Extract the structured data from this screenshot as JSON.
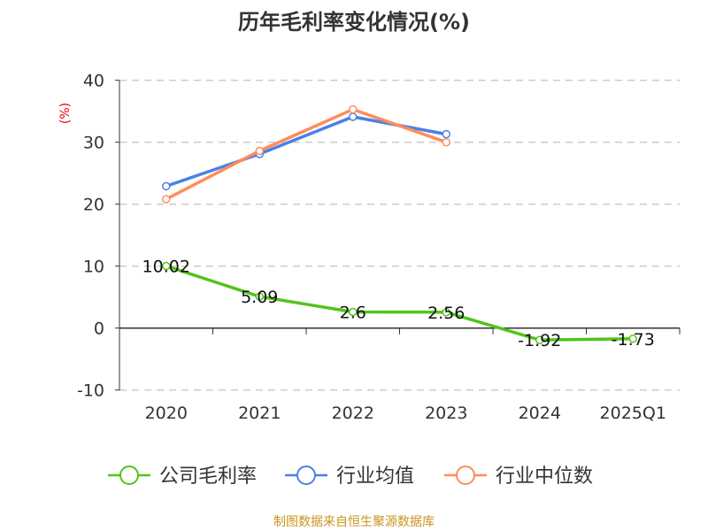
{
  "chart_data": {
    "type": "line",
    "title": "历年毛利率变化情况(%)",
    "ylabel": "(%)",
    "categories": [
      "2020",
      "2021",
      "2022",
      "2023",
      "2024",
      "2025Q1"
    ],
    "ylim": [
      -10,
      40
    ],
    "yticks": [
      "40",
      "30",
      "20",
      "10",
      "0",
      "-10"
    ],
    "grid": true,
    "legend_position": "bottom",
    "series": [
      {
        "name": "公司毛利率",
        "color": "#52c41a",
        "values": [
          10.02,
          5.09,
          2.6,
          2.56,
          -1.92,
          -1.73
        ],
        "labels": [
          "10.02",
          "5.09",
          "2.6",
          "2.56",
          "-1.92",
          "-1.73"
        ]
      },
      {
        "name": "行业均值",
        "color": "#4a80e8",
        "values": [
          22.9,
          28.1,
          34.1,
          31.3,
          null,
          null
        ]
      },
      {
        "name": "行业中位数",
        "color": "#ff8c5a",
        "values": [
          20.8,
          28.6,
          35.3,
          30.0,
          null,
          null
        ]
      }
    ]
  },
  "source": "制图数据来自恒生聚源数据库"
}
